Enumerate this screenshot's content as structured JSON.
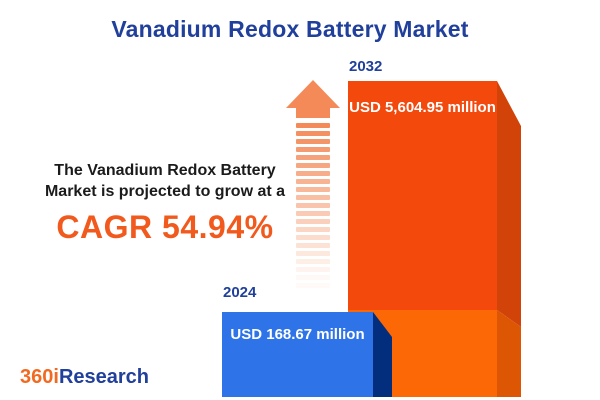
{
  "title": "Vanadium Redox Battery Market",
  "description": {
    "line1": "The Vanadium Redox Battery",
    "line2": "Market is projected to grow at a",
    "cagr": "CAGR 54.94%"
  },
  "chart_data": {
    "type": "bar",
    "title": "Vanadium Redox Battery Market",
    "categories": [
      "2024",
      "2032"
    ],
    "values": [
      168.67,
      5604.95
    ],
    "value_labels": [
      "USD 168.67 million",
      "USD 5,604.95 million"
    ],
    "unit": "USD million",
    "cagr_percent": 54.94,
    "legend": "none",
    "axes": "none",
    "bar_colors": [
      "#2E74E8",
      "#F4490D"
    ]
  },
  "logo": {
    "part1": "360i",
    "part2": "Research"
  },
  "colors": {
    "title_blue": "#21409B",
    "bar_orange": "#F4490D",
    "bar_orange_side": "#D14309",
    "bar_orange_light": "#FB6805",
    "bar_orange_side_light": "#DC5603",
    "bar_blue": "#2E74E8",
    "bar_blue_side": "#032E7E",
    "cagr_orange": "#F1591D",
    "arrow_orange": "#F38A58",
    "logo_orange": "#F26A21",
    "logo_blue": "#21409B",
    "text_dark": "#1B1B1B"
  }
}
